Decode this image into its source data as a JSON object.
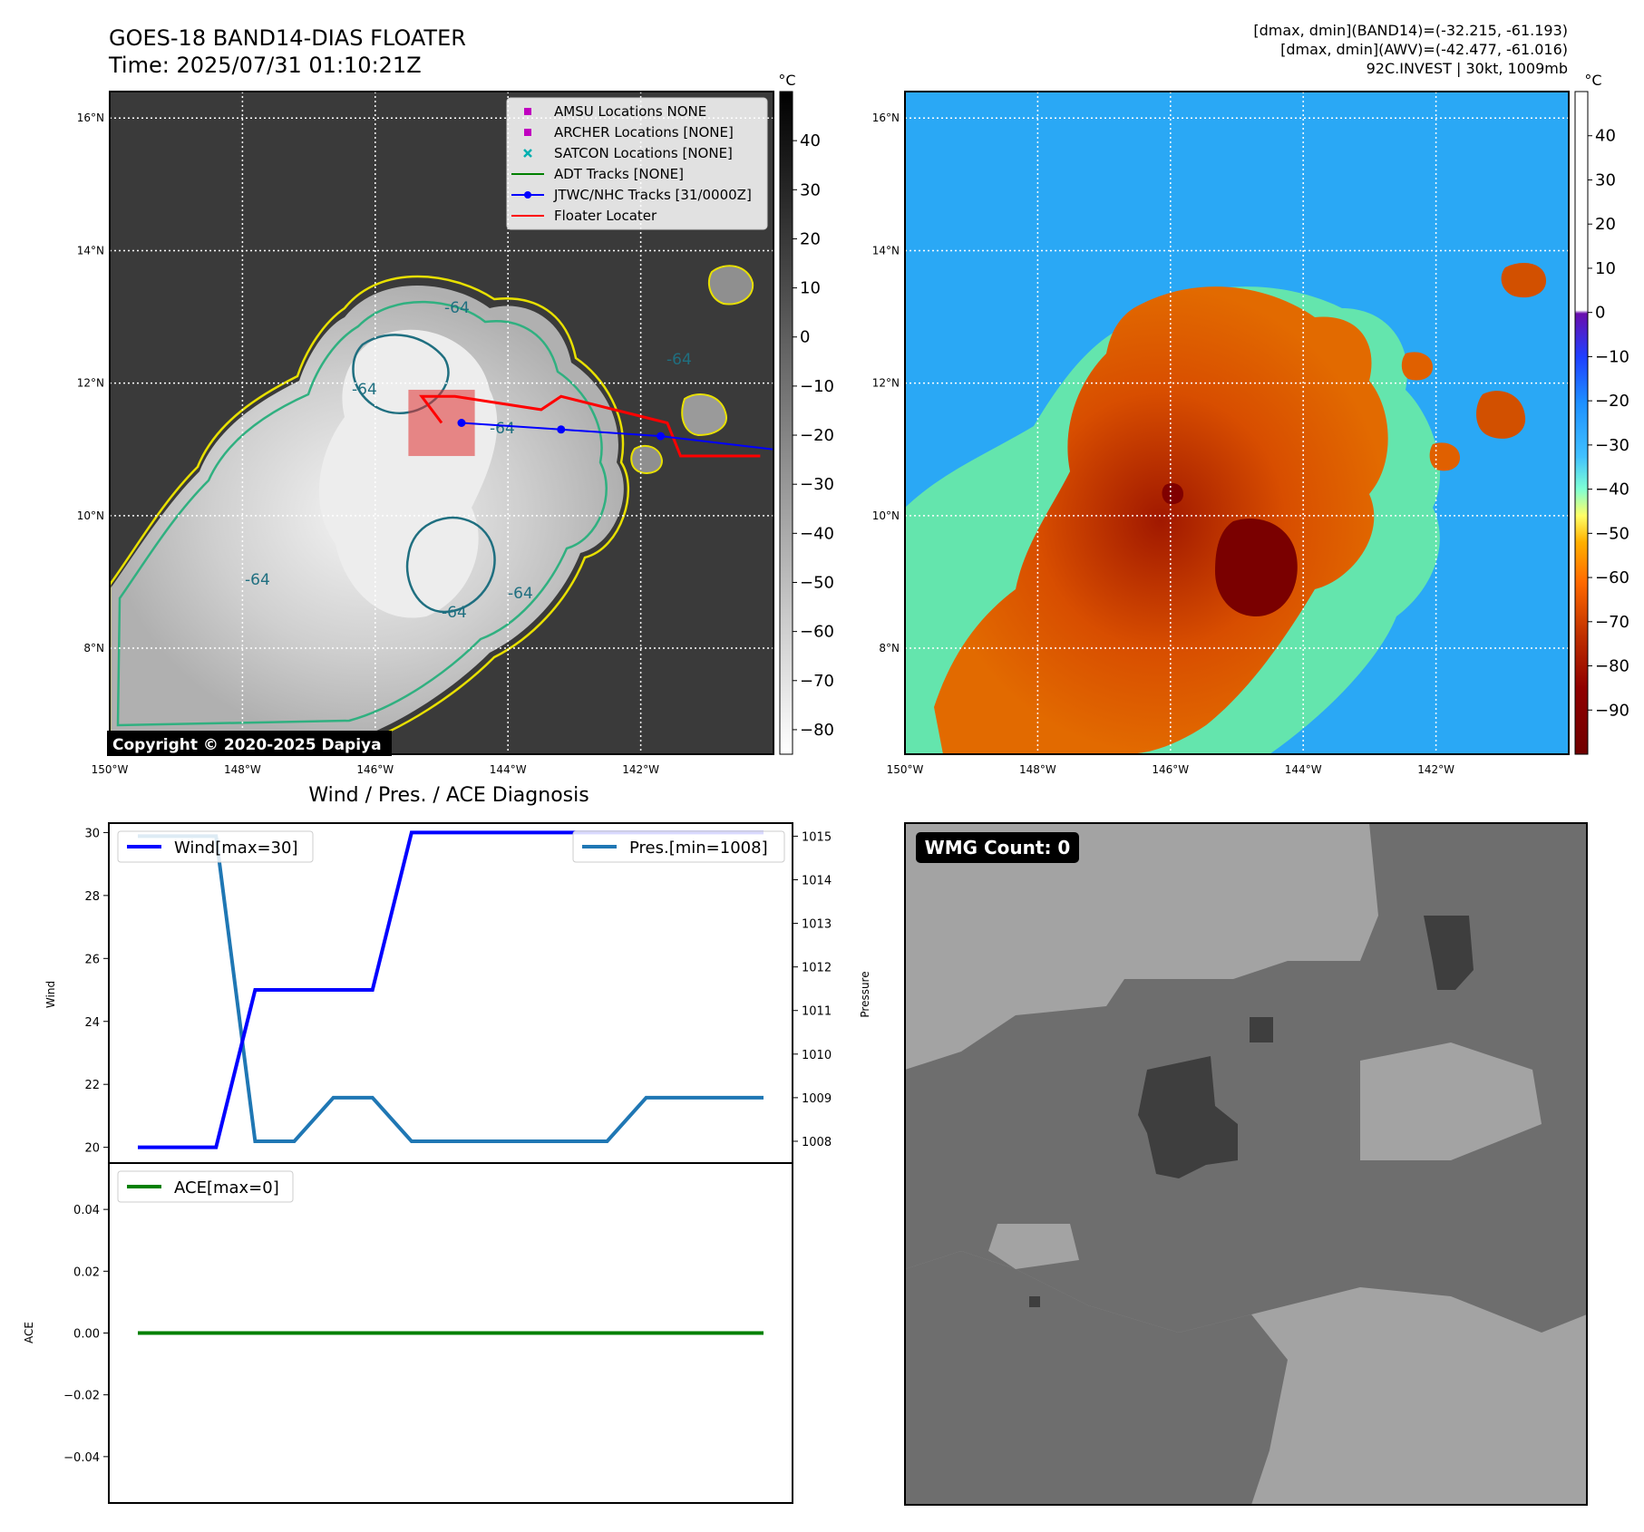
{
  "header": {
    "title": "GOES-18 BAND14-DIAS FLOATER",
    "time": "Time: 2025/07/31 01:10:21Z",
    "info_lines": [
      "[dmax, dmin](BAND14)=(-32.215, -61.193)",
      "[dmax, dmin](AWV)=(-42.477, -61.016)",
      "92C.INVEST | 30kt, 1009mb"
    ]
  },
  "maps": {
    "lat_ticks": [
      "16°N",
      "14°N",
      "12°N",
      "10°N",
      "8°N"
    ],
    "lat_values": [
      16,
      14,
      12,
      10,
      8
    ],
    "lon_ticks": [
      "150°W",
      "148°W",
      "146°W",
      "144°W",
      "142°W"
    ],
    "lon_values": [
      -150,
      -148,
      -146,
      -144,
      -142
    ],
    "lon_range": [
      -150,
      -140
    ],
    "lat_range": [
      6.4,
      16.4
    ],
    "copyright": "Copyright © 2020-2025 Dapiya",
    "contour_labels": [
      "-64",
      "-64",
      "-64",
      "-64",
      "-64",
      "-64",
      "-64"
    ]
  },
  "legend": {
    "items": [
      {
        "label": "AMSU Locations NONE",
        "marker": "square",
        "color": "#c000c0"
      },
      {
        "label": "ARCHER Locations [NONE]",
        "marker": "square",
        "color": "#c000c0"
      },
      {
        "label": "SATCON Locations [NONE]",
        "marker": "x",
        "color": "#00b0b0"
      },
      {
        "label": "ADT Tracks [NONE]",
        "marker": "line",
        "color": "#008000"
      },
      {
        "label": "JTWC/NHC Tracks [31/0000Z]",
        "marker": "line-dot",
        "color": "#0000ff"
      },
      {
        "label": "Floater Locater",
        "marker": "line",
        "color": "#ff0000"
      }
    ]
  },
  "colorbar_left": {
    "unit": "°C",
    "ticks": [
      "40",
      "30",
      "20",
      "10",
      "0",
      "−10",
      "−20",
      "−30",
      "−40",
      "−50",
      "−60",
      "−70",
      "−80"
    ],
    "values": [
      40,
      30,
      20,
      10,
      0,
      -10,
      -20,
      -30,
      -40,
      -50,
      -60,
      -70,
      -80
    ],
    "range": [
      -85,
      50
    ]
  },
  "colorbar_right": {
    "unit": "°C",
    "ticks": [
      "40",
      "30",
      "20",
      "10",
      "0",
      "−10",
      "−20",
      "−30",
      "−40",
      "−50",
      "−60",
      "−70",
      "−80",
      "−90"
    ],
    "values": [
      40,
      30,
      20,
      10,
      0,
      -10,
      -20,
      -30,
      -40,
      -50,
      -60,
      -70,
      -80,
      -90
    ],
    "range": [
      -100,
      50
    ]
  },
  "tracks": {
    "jtwc": [
      [
        -144.7,
        11.4
      ],
      [
        -143.2,
        11.3
      ],
      [
        -141.7,
        11.2
      ],
      [
        -140.0,
        11.0
      ]
    ],
    "floater_box": {
      "lon": [
        -145.5,
        -144.5
      ],
      "lat": [
        10.9,
        11.9
      ]
    },
    "floater_line": [
      [
        -145.0,
        11.4
      ],
      [
        -145.3,
        11.8
      ],
      [
        -144.8,
        11.8
      ],
      [
        -143.5,
        11.6
      ],
      [
        -143.2,
        11.8
      ],
      [
        -141.6,
        11.4
      ],
      [
        -141.4,
        10.9
      ],
      [
        -140.2,
        10.9
      ]
    ]
  },
  "wmg": {
    "label": "WMG Count: 0"
  },
  "chart_data": [
    {
      "type": "line",
      "title": "Wind / Pres. / ACE Diagnosis",
      "x": [
        0,
        1,
        2,
        3,
        4,
        5,
        6,
        7,
        8,
        9,
        10,
        11,
        12,
        13,
        14,
        15,
        16
      ],
      "ylabel": "Wind",
      "ylabel_right": "Pressure",
      "ylim": [
        19.5,
        30.3
      ],
      "ylim_right": [
        1007.5,
        1015.3
      ],
      "yticks": [
        20,
        22,
        24,
        26,
        28,
        30
      ],
      "yticks_right": [
        1008,
        1009,
        1010,
        1011,
        1012,
        1013,
        1014,
        1015
      ],
      "series": [
        {
          "name": "Wind[max=30]",
          "color": "#0000ff",
          "values": [
            20,
            20,
            20,
            25,
            25,
            25,
            25,
            30,
            30,
            30,
            30,
            30,
            30,
            30,
            30,
            30,
            30
          ]
        },
        {
          "name": "Pres.[min=1008]",
          "color": "#1f77b4",
          "axis": "right",
          "values": [
            1015,
            1015,
            1015,
            1008,
            1008,
            1009,
            1009,
            1008,
            1008,
            1008,
            1008,
            1008,
            1008,
            1009,
            1009,
            1009,
            1009
          ]
        }
      ]
    },
    {
      "type": "line",
      "x": [
        0,
        1,
        2,
        3,
        4,
        5,
        6,
        7,
        8,
        9,
        10,
        11,
        12,
        13,
        14,
        15,
        16
      ],
      "ylabel": "ACE",
      "ylim": [
        -0.055,
        0.055
      ],
      "yticks": [
        0.04,
        0.02,
        0.0,
        -0.02,
        -0.04
      ],
      "ytick_labels": [
        "0.04",
        "0.02",
        "0.00",
        "−0.02",
        "−0.04"
      ],
      "series": [
        {
          "name": "ACE[max=0]",
          "color": "#008000",
          "values": [
            0,
            0,
            0,
            0,
            0,
            0,
            0,
            0,
            0,
            0,
            0,
            0,
            0,
            0,
            0,
            0,
            0
          ]
        }
      ]
    }
  ]
}
